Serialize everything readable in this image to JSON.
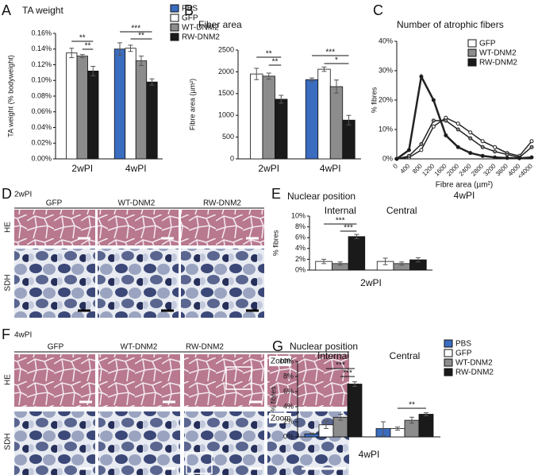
{
  "chart_data": [
    {
      "panel": "A",
      "type": "bar",
      "title": "TA weight",
      "y_label": "TA weight (% bodyweight)",
      "categories": [
        "2wPI",
        "4wPI"
      ],
      "series": [
        {
          "name": "PBS",
          "color": "#3a6cc0",
          "values": [
            null,
            0.14
          ],
          "errors": [
            null,
            0.008
          ]
        },
        {
          "name": "GFP",
          "color": "#ffffff",
          "values": [
            0.135,
            0.141
          ],
          "errors": [
            0.006,
            0.004
          ]
        },
        {
          "name": "WT-DNM2",
          "color": "#8c8c8c",
          "values": [
            0.131,
            0.125
          ],
          "errors": [
            0.002,
            0.006
          ]
        },
        {
          "name": "RW-DNM2",
          "color": "#1a1a1a",
          "values": [
            0.112,
            0.098
          ],
          "errors": [
            0.006,
            0.004
          ]
        }
      ],
      "ylim": [
        0,
        0.16
      ],
      "yticks": [
        {
          "value": 0,
          "label": "0.00%"
        },
        {
          "value": 0.02,
          "label": "0.02%"
        },
        {
          "value": 0.04,
          "label": "0.04%"
        },
        {
          "value": 0.06,
          "label": "0.06%"
        },
        {
          "value": 0.08,
          "label": "0.08%"
        },
        {
          "value": 0.1,
          "label": "0.10%"
        },
        {
          "value": 0.12,
          "label": "0.12%"
        },
        {
          "value": 0.14,
          "label": "0.14%"
        },
        {
          "value": 0.16,
          "label": "0.16%"
        }
      ],
      "annotations": [
        "**",
        "**",
        "***",
        "**"
      ],
      "legend": true
    },
    {
      "panel": "B",
      "type": "bar",
      "title": "Fiber area",
      "y_label": "Fibre area (µm²)",
      "categories": [
        "2wPI",
        "4wPI"
      ],
      "series": [
        {
          "name": "PBS",
          "color": "#3a6cc0",
          "values": [
            null,
            1820
          ],
          "errors": [
            null,
            40
          ]
        },
        {
          "name": "GFP",
          "color": "#ffffff",
          "values": [
            1950,
            2060
          ],
          "errors": [
            130,
            50
          ]
        },
        {
          "name": "WT-DNM2",
          "color": "#8c8c8c",
          "values": [
            1900,
            1660
          ],
          "errors": [
            70,
            150
          ]
        },
        {
          "name": "RW-DNM2",
          "color": "#1a1a1a",
          "values": [
            1370,
            890
          ],
          "errors": [
            90,
            110
          ]
        }
      ],
      "ylim": [
        0,
        2500
      ],
      "yticks": [
        0,
        500,
        1000,
        1500,
        2000,
        2500
      ],
      "annotations": [
        "**",
        "**",
        "***",
        "*"
      ],
      "legend": false
    },
    {
      "panel": "C",
      "type": "line",
      "title": "Number of atrophic fibers",
      "y_label": "% fibres",
      "x_label": "Fibre area (µm²)",
      "subtitle": "4wPI",
      "categories": [
        "0",
        "400",
        "800",
        "1200",
        "1600",
        "2000",
        "2400",
        "2800",
        "3200",
        "3600",
        "4000",
        "<4000"
      ],
      "series": [
        {
          "name": "GFP",
          "color": "#ffffff",
          "values": [
            0,
            0.5,
            3,
            11,
            14,
            12,
            9,
            6,
            4,
            2,
            1,
            6
          ]
        },
        {
          "name": "WT-DNM2",
          "color": "#8c8c8c",
          "values": [
            0,
            1,
            5,
            13,
            13,
            10,
            7,
            4,
            2.5,
            1.5,
            0.5,
            4
          ]
        },
        {
          "name": "RW-DNM2",
          "color": "#1a1a1a",
          "values": [
            0,
            3,
            28,
            20,
            8,
            4,
            2,
            1,
            0.5,
            0.3,
            0.2,
            0.5
          ]
        }
      ],
      "ylim": [
        0,
        40
      ],
      "yticks": [
        {
          "value": 0,
          "label": "0%"
        },
        {
          "value": 10,
          "label": "10%"
        },
        {
          "value": 20,
          "label": "20%"
        },
        {
          "value": 30,
          "label": "30%"
        },
        {
          "value": 40,
          "label": "40%"
        }
      ],
      "legend": true
    },
    {
      "panel": "E",
      "type": "bar",
      "title": "Nuclear position",
      "y_label": "% fibres",
      "x_label": "2wPI",
      "categories": [
        "Internal",
        "Central"
      ],
      "series": [
        {
          "name": "GFP",
          "color": "#ffffff",
          "values": [
            1.6,
            1.6
          ],
          "errors": [
            0.4,
            0.6
          ]
        },
        {
          "name": "WT-DNM2",
          "color": "#8c8c8c",
          "values": [
            1.2,
            1.2
          ],
          "errors": [
            0.3,
            0.3
          ]
        },
        {
          "name": "RW-DNM2",
          "color": "#1a1a1a",
          "values": [
            6.2,
            1.9
          ],
          "errors": [
            0.4,
            0.4
          ]
        }
      ],
      "ylim": [
        0,
        10
      ],
      "yticks": [
        {
          "value": 0,
          "label": "0%"
        },
        {
          "value": 2,
          "label": "2%"
        },
        {
          "value": 4,
          "label": "4%"
        },
        {
          "value": 6,
          "label": "6%"
        },
        {
          "value": 8,
          "label": "8%"
        },
        {
          "value": 10,
          "label": "10%"
        }
      ],
      "annotations": [
        "***",
        "***"
      ],
      "legend": false
    },
    {
      "panel": "G",
      "type": "bar",
      "title": "Nuclear position",
      "y_label": "% fibres",
      "x_label": "4wPI",
      "categories": [
        "Internal",
        "Central"
      ],
      "series": [
        {
          "name": "PBS",
          "color": "#3a6cc0",
          "values": [
            0.4,
            1.1
          ],
          "errors": [
            0.1,
            0.9
          ]
        },
        {
          "name": "GFP",
          "color": "#ffffff",
          "values": [
            1.6,
            1.1
          ],
          "errors": [
            0.5,
            0.2
          ]
        },
        {
          "name": "WT-DNM2",
          "color": "#8c8c8c",
          "values": [
            2.6,
            2.2
          ],
          "errors": [
            0.4,
            0.4
          ]
        },
        {
          "name": "RW-DNM2",
          "color": "#1a1a1a",
          "values": [
            7.0,
            3.0
          ],
          "errors": [
            0.3,
            0.2
          ]
        }
      ],
      "ylim": [
        0,
        10
      ],
      "yticks": [
        {
          "value": 0,
          "label": "0%"
        },
        {
          "value": 2,
          "label": "2%"
        },
        {
          "value": 4,
          "label": "4%"
        },
        {
          "value": 6,
          "label": "6%"
        },
        {
          "value": 8,
          "label": "8%"
        },
        {
          "value": 10,
          "label": "10%"
        }
      ],
      "annotations": [
        "***",
        "***",
        "**"
      ],
      "legend": true
    }
  ],
  "micrographs": [
    {
      "panel": "D",
      "condition": "2wPI",
      "columns": [
        "GFP",
        "WT-DNM2",
        "RW-DNM2"
      ],
      "rows": [
        "HE",
        "SDH"
      ]
    },
    {
      "panel": "F",
      "condition": "4wPI",
      "columns": [
        "GFP",
        "WT-DNM2",
        "RW-DNM2"
      ],
      "rows": [
        "HE",
        "SDH"
      ],
      "zoom_labels": [
        "Zoom",
        "Zoom"
      ]
    }
  ]
}
